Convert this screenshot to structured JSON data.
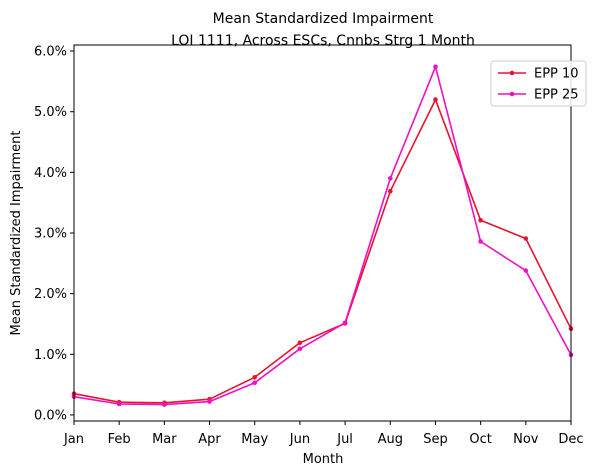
{
  "chart_data": {
    "type": "line",
    "title": "Mean Standardized Impairment",
    "subtitle": "LOI 1111, Across ESCs, Cnnbs Strg 1 Month",
    "xlabel": "Month",
    "ylabel": "Mean Standardized Impairment",
    "categories": [
      "Jan",
      "Feb",
      "Mar",
      "Apr",
      "May",
      "Jun",
      "Jul",
      "Aug",
      "Sep",
      "Oct",
      "Nov",
      "Dec"
    ],
    "ylim": [
      -0.1,
      6.1
    ],
    "yticks": [
      0.0,
      1.0,
      2.0,
      3.0,
      4.0,
      5.0,
      6.0
    ],
    "ytick_labels": [
      "0.0%",
      "1.0%",
      "2.0%",
      "3.0%",
      "4.0%",
      "5.0%",
      "6.0%"
    ],
    "grid": false,
    "legend_position": "top-right",
    "series": [
      {
        "name": "EPP 10",
        "color": "#e8142d",
        "values": [
          0.35,
          0.21,
          0.2,
          0.26,
          0.62,
          1.19,
          1.51,
          3.69,
          5.2,
          3.21,
          2.91,
          1.42
        ]
      },
      {
        "name": "EPP 25",
        "color": "#f20fc4",
        "values": [
          0.3,
          0.18,
          0.17,
          0.22,
          0.53,
          1.09,
          1.52,
          3.9,
          5.74,
          2.86,
          2.38,
          0.99
        ]
      }
    ]
  }
}
